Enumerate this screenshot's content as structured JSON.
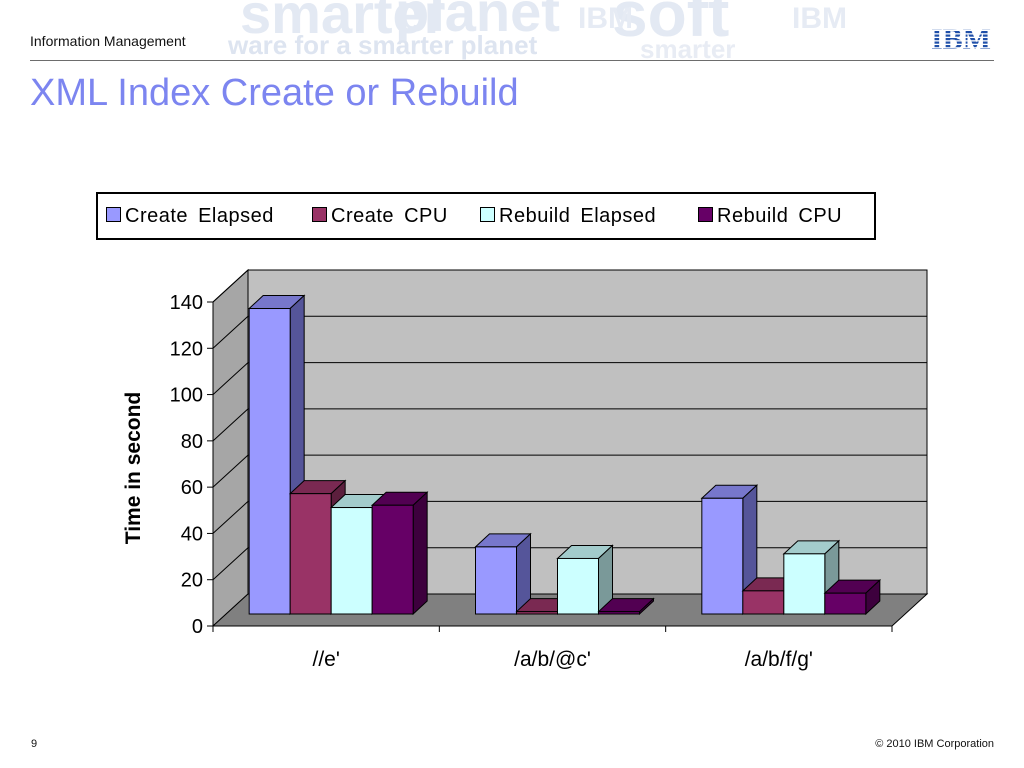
{
  "header": {
    "section": "Information Management",
    "watermark": [
      "smarter",
      "planet",
      "soft",
      "ware for a smarter planet",
      "IBM",
      "IBM",
      "smarter"
    ]
  },
  "logo": {
    "text": "IBM"
  },
  "slide": {
    "title": "XML Index Create or Rebuild"
  },
  "footer": {
    "page": "9",
    "copyright": "© 2010 IBM Corporation"
  },
  "chart_data": {
    "type": "bar",
    "style": "3d-clustered-column",
    "categories": [
      "//e'",
      "/a/b/@c'",
      "/a/b/f/g'"
    ],
    "series": [
      {
        "name": "Create  Elapsed",
        "values": [
          132,
          29,
          50
        ],
        "color": "#9999ff",
        "side": "#55559a",
        "top": "#7777cc"
      },
      {
        "name": "Create  CPU",
        "values": [
          52,
          1,
          10
        ],
        "color": "#993366",
        "side": "#5c1f3d",
        "top": "#7a2952"
      },
      {
        "name": "Rebuild  Elapsed",
        "values": [
          46,
          24,
          26
        ],
        "color": "#ccffff",
        "side": "#7a9999",
        "top": "#a3cccc"
      },
      {
        "name": "Rebuild  CPU",
        "values": [
          47,
          1,
          9
        ],
        "color": "#660066",
        "side": "#3d003d",
        "top": "#520052"
      }
    ],
    "ylabel": "Time in second",
    "xlabel": "",
    "ylim": [
      0,
      140
    ],
    "yticks": [
      "0",
      "20",
      "40",
      "60",
      "80",
      "100",
      "120",
      "140"
    ],
    "grid": true,
    "legend": "top"
  }
}
